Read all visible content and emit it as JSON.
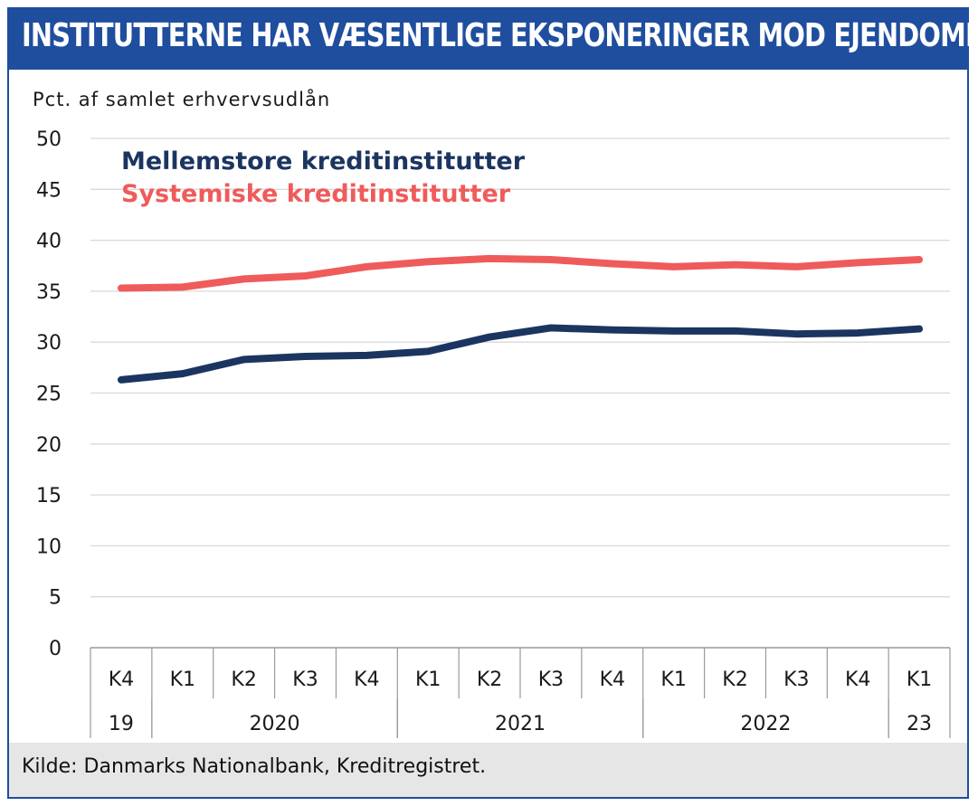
{
  "title": "INSTITUTTERNE HAR VÆSENTLIGE EKSPONERINGER MOD EJENDOMME",
  "source": "Kilde: Danmarks Nationalbank, Kreditregistret.",
  "colors": {
    "frame": "#1f4e9e",
    "series_mellemstore": "#1b3560",
    "series_systemiske": "#ef5b5b",
    "grid": "#d9d9d9",
    "footer_bg": "#e6e6e6"
  },
  "chart_data": {
    "type": "line",
    "ylabel": "Pct. af samlet erhvervsudlån",
    "ylim": [
      0,
      50
    ],
    "yticks": [
      0,
      5,
      10,
      15,
      20,
      25,
      30,
      35,
      40,
      45,
      50
    ],
    "grid": true,
    "legend_position": "top-left",
    "categories": [
      "K4",
      "K1",
      "K2",
      "K3",
      "K4",
      "K1",
      "K2",
      "K3",
      "K4",
      "K1",
      "K2",
      "K3",
      "K4",
      "K1"
    ],
    "year_groups": [
      {
        "label": "19",
        "span": 1
      },
      {
        "label": "2020",
        "span": 4
      },
      {
        "label": "2021",
        "span": 4
      },
      {
        "label": "2022",
        "span": 4
      },
      {
        "label": "23",
        "span": 1
      }
    ],
    "series": [
      {
        "name": "Mellemstore kreditinstitutter",
        "color": "#1b3560",
        "values": [
          26.3,
          26.9,
          28.3,
          28.6,
          28.7,
          29.1,
          30.5,
          31.4,
          31.2,
          31.1,
          31.1,
          30.8,
          30.9,
          31.3
        ]
      },
      {
        "name": "Systemiske kreditinstitutter",
        "color": "#ef5b5b",
        "values": [
          35.3,
          35.4,
          36.2,
          36.5,
          37.4,
          37.9,
          38.2,
          38.1,
          37.7,
          37.4,
          37.6,
          37.4,
          37.8,
          38.1
        ]
      }
    ]
  }
}
